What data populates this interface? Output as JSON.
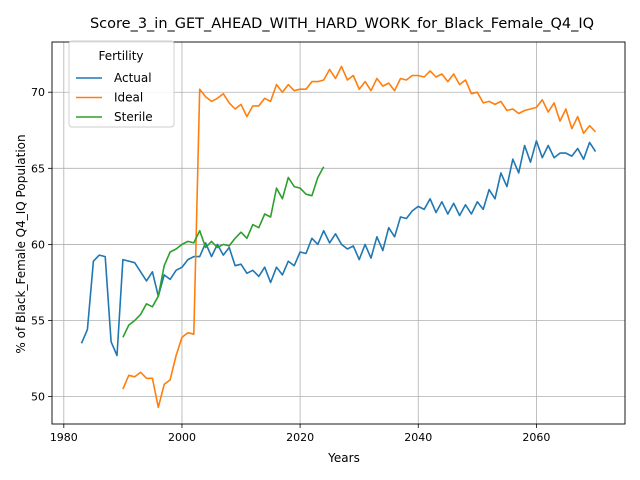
{
  "chart_data": {
    "type": "line",
    "title": "Score_3_in_GET_AHEAD_WITH_HARD_WORK_for_Black_Female_Q4_IQ",
    "xlabel": "Years",
    "ylabel": "% of Black_Female Q4_IQ Population",
    "xlim": [
      1978,
      2075
    ],
    "ylim": [
      48.2,
      73.3
    ],
    "xticks": [
      1980,
      2000,
      2020,
      2040,
      2060
    ],
    "yticks": [
      50,
      55,
      60,
      65,
      70
    ],
    "grid": true,
    "legend": {
      "title": "Fertility",
      "placement": "top-left"
    },
    "series": [
      {
        "name": "Actual",
        "color": "#1f77b4",
        "x": [
          1983,
          1984,
          1985,
          1986,
          1987,
          1988,
          1989,
          1990,
          1992,
          1994,
          1995,
          1996,
          1997,
          1998,
          1999,
          2000,
          2001,
          2002,
          2003,
          2004,
          2005,
          2006,
          2007,
          2008,
          2009,
          2010,
          2011,
          2012,
          2013,
          2014,
          2015,
          2016,
          2017,
          2018,
          2019,
          2020,
          2021,
          2022,
          2023,
          2024,
          2025,
          2026,
          2027,
          2028,
          2029,
          2030,
          2031,
          2032,
          2033,
          2034,
          2035,
          2036,
          2037,
          2038,
          2039,
          2040,
          2041,
          2042,
          2043,
          2044,
          2045,
          2046,
          2047,
          2048,
          2049,
          2050,
          2051,
          2052,
          2053,
          2054,
          2055,
          2056,
          2057,
          2058,
          2059,
          2060,
          2061,
          2062,
          2063,
          2064,
          2065,
          2066,
          2067,
          2068,
          2069,
          2070
        ],
        "y": [
          53.5,
          54.4,
          58.9,
          59.3,
          59.2,
          53.6,
          52.7,
          59.0,
          58.8,
          57.6,
          58.2,
          56.6,
          58.0,
          57.7,
          58.3,
          58.5,
          59.0,
          59.2,
          59.2,
          60.1,
          59.2,
          60.0,
          59.3,
          59.8,
          58.6,
          58.7,
          58.1,
          58.3,
          57.9,
          58.5,
          57.5,
          58.5,
          58.0,
          58.9,
          58.6,
          59.5,
          59.4,
          60.4,
          60.0,
          60.9,
          60.1,
          60.7,
          60.0,
          59.7,
          59.9,
          59.0,
          60.0,
          59.1,
          60.5,
          59.6,
          61.1,
          60.5,
          61.8,
          61.7,
          62.2,
          62.5,
          62.3,
          63.0,
          62.1,
          62.8,
          62.0,
          62.7,
          61.9,
          62.6,
          62.0,
          62.8,
          62.3,
          63.6,
          63.0,
          64.7,
          63.8,
          65.6,
          64.7,
          66.5,
          65.4,
          66.8,
          65.7,
          66.5,
          65.7,
          66.0,
          66.0,
          65.8,
          66.3,
          65.6,
          66.7,
          66.1
        ]
      },
      {
        "name": "Ideal",
        "color": "#ff7f0e",
        "x": [
          1990,
          1991,
          1992,
          1993,
          1994,
          1995,
          1996,
          1997,
          1998,
          1999,
          2000,
          2001,
          2002,
          2003,
          2004,
          2005,
          2006,
          2007,
          2008,
          2009,
          2010,
          2011,
          2012,
          2013,
          2014,
          2015,
          2016,
          2017,
          2018,
          2019,
          2020,
          2021,
          2022,
          2023,
          2024,
          2025,
          2026,
          2027,
          2028,
          2029,
          2030,
          2031,
          2032,
          2033,
          2034,
          2035,
          2036,
          2037,
          2038,
          2039,
          2040,
          2041,
          2042,
          2043,
          2044,
          2045,
          2046,
          2047,
          2048,
          2049,
          2050,
          2051,
          2052,
          2053,
          2054,
          2055,
          2056,
          2057,
          2058,
          2059,
          2060,
          2061,
          2062,
          2063,
          2064,
          2065,
          2066,
          2067,
          2068,
          2069,
          2070
        ],
        "y": [
          50.5,
          51.4,
          51.3,
          51.6,
          51.2,
          51.2,
          49.3,
          50.8,
          51.1,
          52.7,
          53.9,
          54.2,
          54.1,
          70.2,
          69.7,
          69.4,
          69.6,
          69.9,
          69.3,
          68.9,
          69.2,
          68.4,
          69.1,
          69.1,
          69.6,
          69.4,
          70.5,
          70.0,
          70.5,
          70.1,
          70.2,
          70.2,
          70.7,
          70.7,
          70.8,
          71.5,
          70.9,
          71.7,
          70.8,
          71.1,
          70.2,
          70.7,
          70.1,
          70.9,
          70.4,
          70.6,
          70.1,
          70.9,
          70.8,
          71.1,
          71.1,
          71.0,
          71.4,
          71.0,
          71.2,
          70.7,
          71.2,
          70.5,
          70.8,
          69.9,
          70.0,
          69.3,
          69.4,
          69.2,
          69.4,
          68.8,
          68.9,
          68.6,
          68.8,
          68.9,
          69.0,
          69.5,
          68.7,
          69.3,
          68.1,
          68.9,
          67.6,
          68.4,
          67.3,
          67.8,
          67.4
        ]
      },
      {
        "name": "Sterile",
        "color": "#2ca02c",
        "x": [
          1990,
          1991,
          1992,
          1993,
          1994,
          1995,
          1996,
          1997,
          1998,
          1999,
          2000,
          2001,
          2002,
          2003,
          2004,
          2005,
          2006,
          2007,
          2008,
          2009,
          2010,
          2011,
          2012,
          2013,
          2014,
          2015,
          2016,
          2017,
          2018,
          2019,
          2020,
          2021,
          2022,
          2023,
          2024
        ],
        "y": [
          53.9,
          54.7,
          55.0,
          55.4,
          56.1,
          55.9,
          56.6,
          58.6,
          59.5,
          59.7,
          60.0,
          60.2,
          60.1,
          60.9,
          59.8,
          60.2,
          59.8,
          60.0,
          59.9,
          60.4,
          60.8,
          60.4,
          61.3,
          61.1,
          62.0,
          61.8,
          63.7,
          63.0,
          64.4,
          63.8,
          63.7,
          63.3,
          63.2,
          64.4,
          65.1
        ]
      }
    ]
  }
}
